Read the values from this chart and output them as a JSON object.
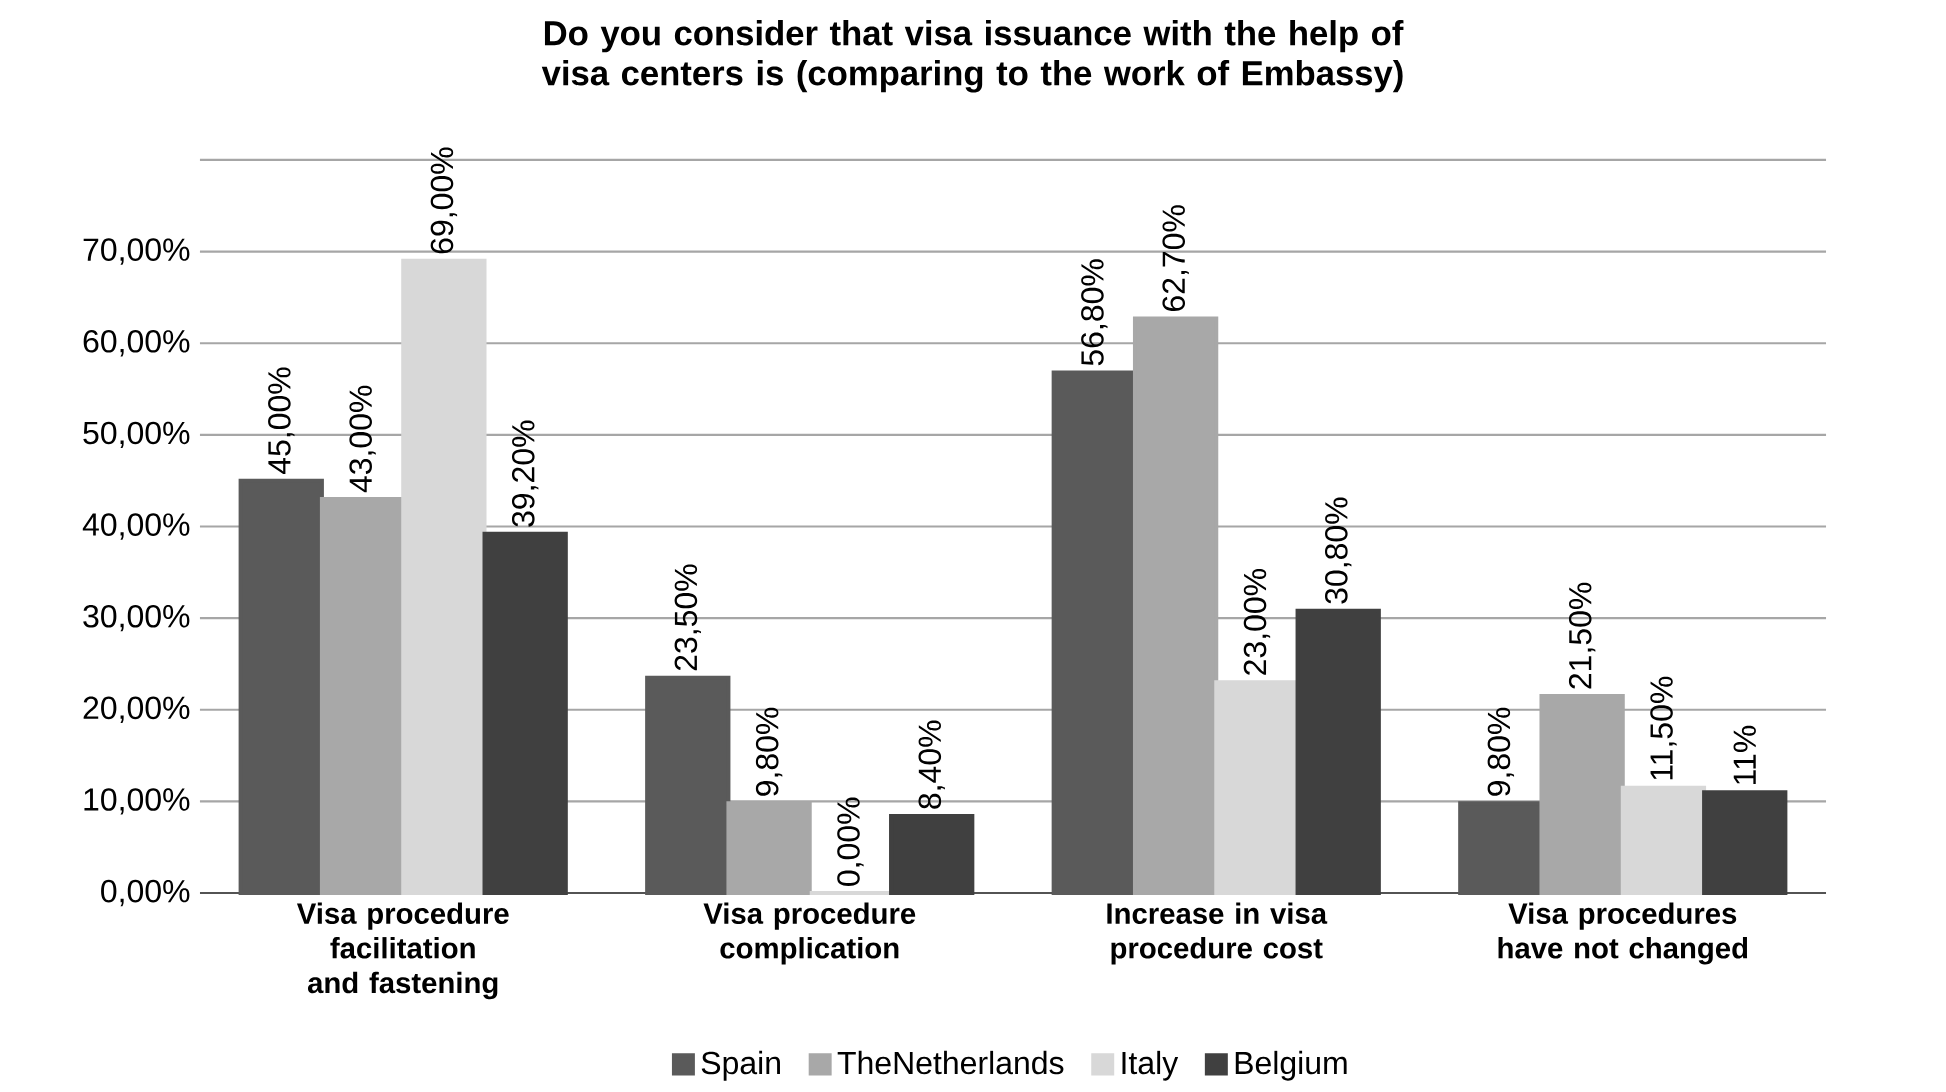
{
  "chart_data": {
    "type": "bar",
    "title": "Do you consider that visa issuance with the help of visa centers is (comparing to the work of Embassy)",
    "categories": [
      "Visa procedure facilitation and fastening",
      "Visa procedure complication",
      "Increase in visa procedure cost",
      "Visa procedures have not changed"
    ],
    "series": [
      {
        "name": "Spain",
        "color": "#5a5a5a",
        "values": [
          45,
          23.5,
          56.8,
          9.8
        ],
        "value_labels": [
          "45,00%",
          "23,50%",
          "56,80%",
          "9,80%"
        ]
      },
      {
        "name": "TheNetherlands",
        "color": "#a8a8a8",
        "values": [
          43,
          9.8,
          62.7,
          21.5
        ],
        "value_labels": [
          "43,00%",
          "9,80%",
          "62,70%",
          "21,50%"
        ]
      },
      {
        "name": "Italy",
        "color": "#d8d8d8",
        "values": [
          69,
          0,
          23,
          11.5
        ],
        "value_labels": [
          "69,00%",
          "0,00%",
          "23,00%",
          "11,50%"
        ]
      },
      {
        "name": "Belgium",
        "color": "#404040",
        "values": [
          39.2,
          8.4,
          30.8,
          11
        ],
        "value_labels": [
          "39,20%",
          "8,40%",
          "30,80%",
          "11%"
        ]
      }
    ],
    "ylim": [
      0,
      80
    ],
    "yticks": [
      {
        "value": 0,
        "label": "0,00%"
      },
      {
        "value": 10,
        "label": "10,00%"
      },
      {
        "value": 20,
        "label": "20,00%"
      },
      {
        "value": 30,
        "label": "30,00%"
      },
      {
        "value": 40,
        "label": "40,00%"
      },
      {
        "value": 50,
        "label": "50,00%"
      },
      {
        "value": 60,
        "label": "60,00%"
      },
      {
        "value": 70,
        "label": "70,00%"
      },
      {
        "value": 80,
        "label": null
      }
    ],
    "grid": "y",
    "legend": "bottom"
  }
}
